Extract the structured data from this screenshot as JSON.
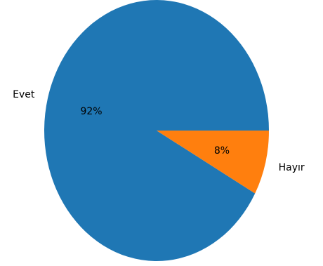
{
  "chart_data": {
    "type": "pie",
    "title": "",
    "categories": [
      "Evet",
      "Hayır"
    ],
    "values": [
      92,
      8
    ],
    "percent_labels": [
      "92%",
      "8%"
    ],
    "colors": [
      "#1f77b4",
      "#ff7f0e"
    ],
    "start_angle_deg": 0,
    "direction": "counterclockwise",
    "legend": "none"
  }
}
